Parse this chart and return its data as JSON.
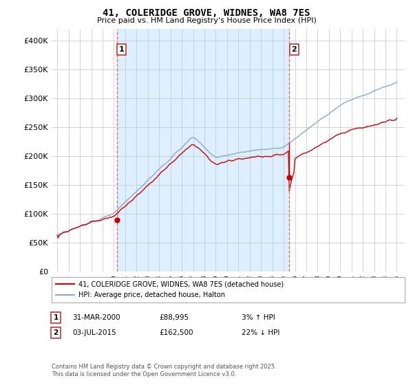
{
  "title": "41, COLERIDGE GROVE, WIDNES, WA8 7ES",
  "subtitle": "Price paid vs. HM Land Registry's House Price Index (HPI)",
  "legend_line1": "41, COLERIDGE GROVE, WIDNES, WA8 7ES (detached house)",
  "legend_line2": "HPI: Average price, detached house, Halton",
  "annotation1_label": "1",
  "annotation1_date": "31-MAR-2000",
  "annotation1_price": "£88,995",
  "annotation1_hpi": "3% ↑ HPI",
  "annotation2_label": "2",
  "annotation2_date": "03-JUL-2015",
  "annotation2_price": "£162,500",
  "annotation2_hpi": "22% ↓ HPI",
  "footnote": "Contains HM Land Registry data © Crown copyright and database right 2025.\nThis data is licensed under the Open Government Licence v3.0.",
  "red_color": "#cc0000",
  "blue_color": "#88aacc",
  "shade_color": "#ddeeff",
  "annotation_vline_color": "#dd6666",
  "grid_color": "#cccccc",
  "background_color": "#ffffff",
  "ylim": [
    0,
    420000
  ],
  "yticks": [
    0,
    50000,
    100000,
    150000,
    200000,
    250000,
    300000,
    350000,
    400000
  ],
  "xstart_year": 1995,
  "xend_year": 2025,
  "event1_year": 2000.25,
  "event1_price": 88995,
  "event2_year": 2015.5,
  "event2_price": 162500
}
